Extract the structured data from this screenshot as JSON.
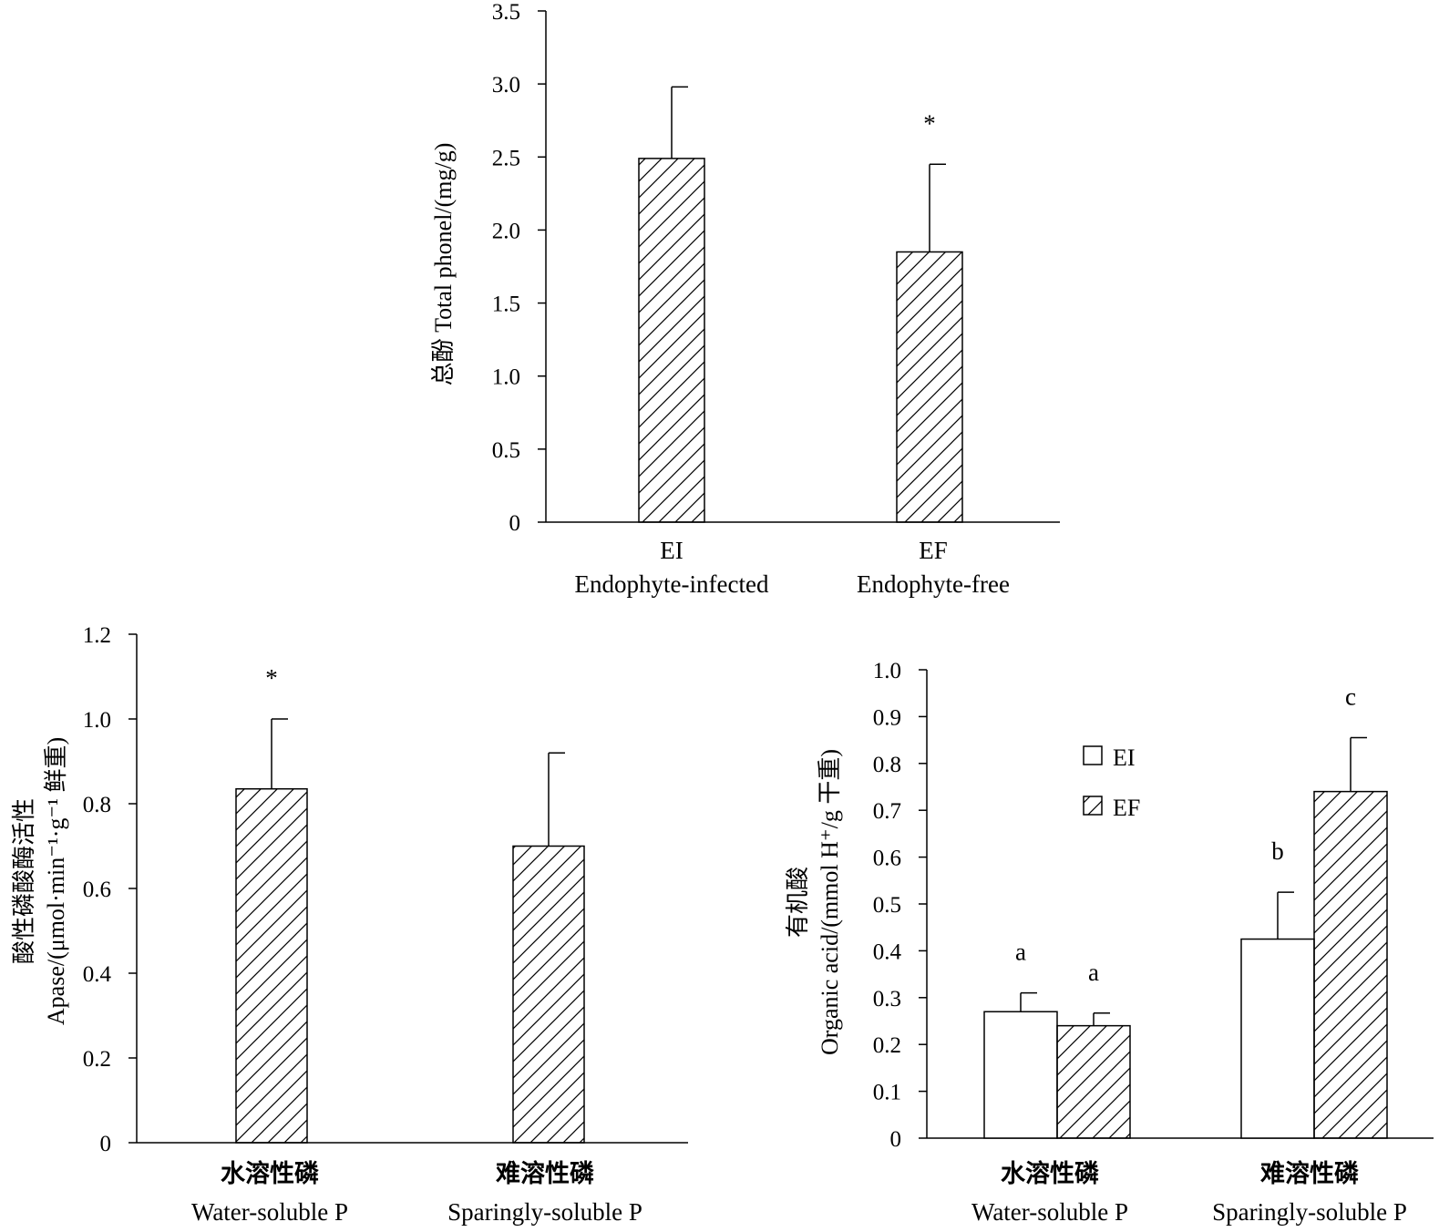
{
  "chart_data": [
    {
      "type": "bar",
      "ylabel": "总酚 Total phonel/(mg/g)",
      "ylim": [
        0,
        3.5
      ],
      "yticks": [
        "0",
        "0.5",
        "1.0",
        "1.5",
        "2.0",
        "2.5",
        "3.0",
        "3.5"
      ],
      "categories": [
        {
          "code": "EI",
          "label": "Endophyte-infected"
        },
        {
          "code": "EF",
          "label": "Endophyte-free"
        }
      ],
      "values": [
        2.49,
        1.85
      ],
      "errors": [
        0.49,
        0.6
      ],
      "annotations": [
        "",
        "*"
      ],
      "fill": "hatched"
    },
    {
      "type": "bar",
      "ylabel_line1": "酸性磷酸酶活性",
      "ylabel_line2": "Apase/(μmol·min⁻¹·g⁻¹ 鲜重)",
      "ylim": [
        0,
        1.2
      ],
      "yticks": [
        "0",
        "0.2",
        "0.4",
        "0.6",
        "0.8",
        "1.0",
        "1.2"
      ],
      "categories": [
        {
          "cn": "水溶性磷",
          "label": "Water-soluble P"
        },
        {
          "cn": "难溶性磷",
          "label": "Sparingly-soluble P"
        }
      ],
      "values": [
        0.835,
        0.7
      ],
      "errors": [
        0.165,
        0.22
      ],
      "annotations": [
        "*",
        ""
      ],
      "fill": "hatched"
    },
    {
      "type": "bar",
      "ylabel_line1": "有机酸",
      "ylabel_line2": "Organic acid/(mmol H⁺/g 干重)",
      "ylim": [
        0,
        1.0
      ],
      "yticks": [
        "0",
        "0.1",
        "0.2",
        "0.3",
        "0.4",
        "0.5",
        "0.6",
        "0.7",
        "0.8",
        "0.9",
        "1.0"
      ],
      "categories": [
        {
          "cn": "水溶性磷",
          "label": "Water-soluble P"
        },
        {
          "cn": "难溶性磷",
          "label": "Sparingly-soluble P"
        }
      ],
      "series": [
        {
          "name": "EI",
          "fill": "open",
          "values": [
            0.27,
            0.425
          ],
          "errors": [
            0.04,
            0.1
          ],
          "letters": [
            "a",
            "b"
          ]
        },
        {
          "name": "EF",
          "fill": "hatched",
          "values": [
            0.24,
            0.74
          ],
          "errors": [
            0.027,
            0.115
          ],
          "letters": [
            "a",
            "c"
          ]
        }
      ],
      "legend": "top-center"
    }
  ]
}
